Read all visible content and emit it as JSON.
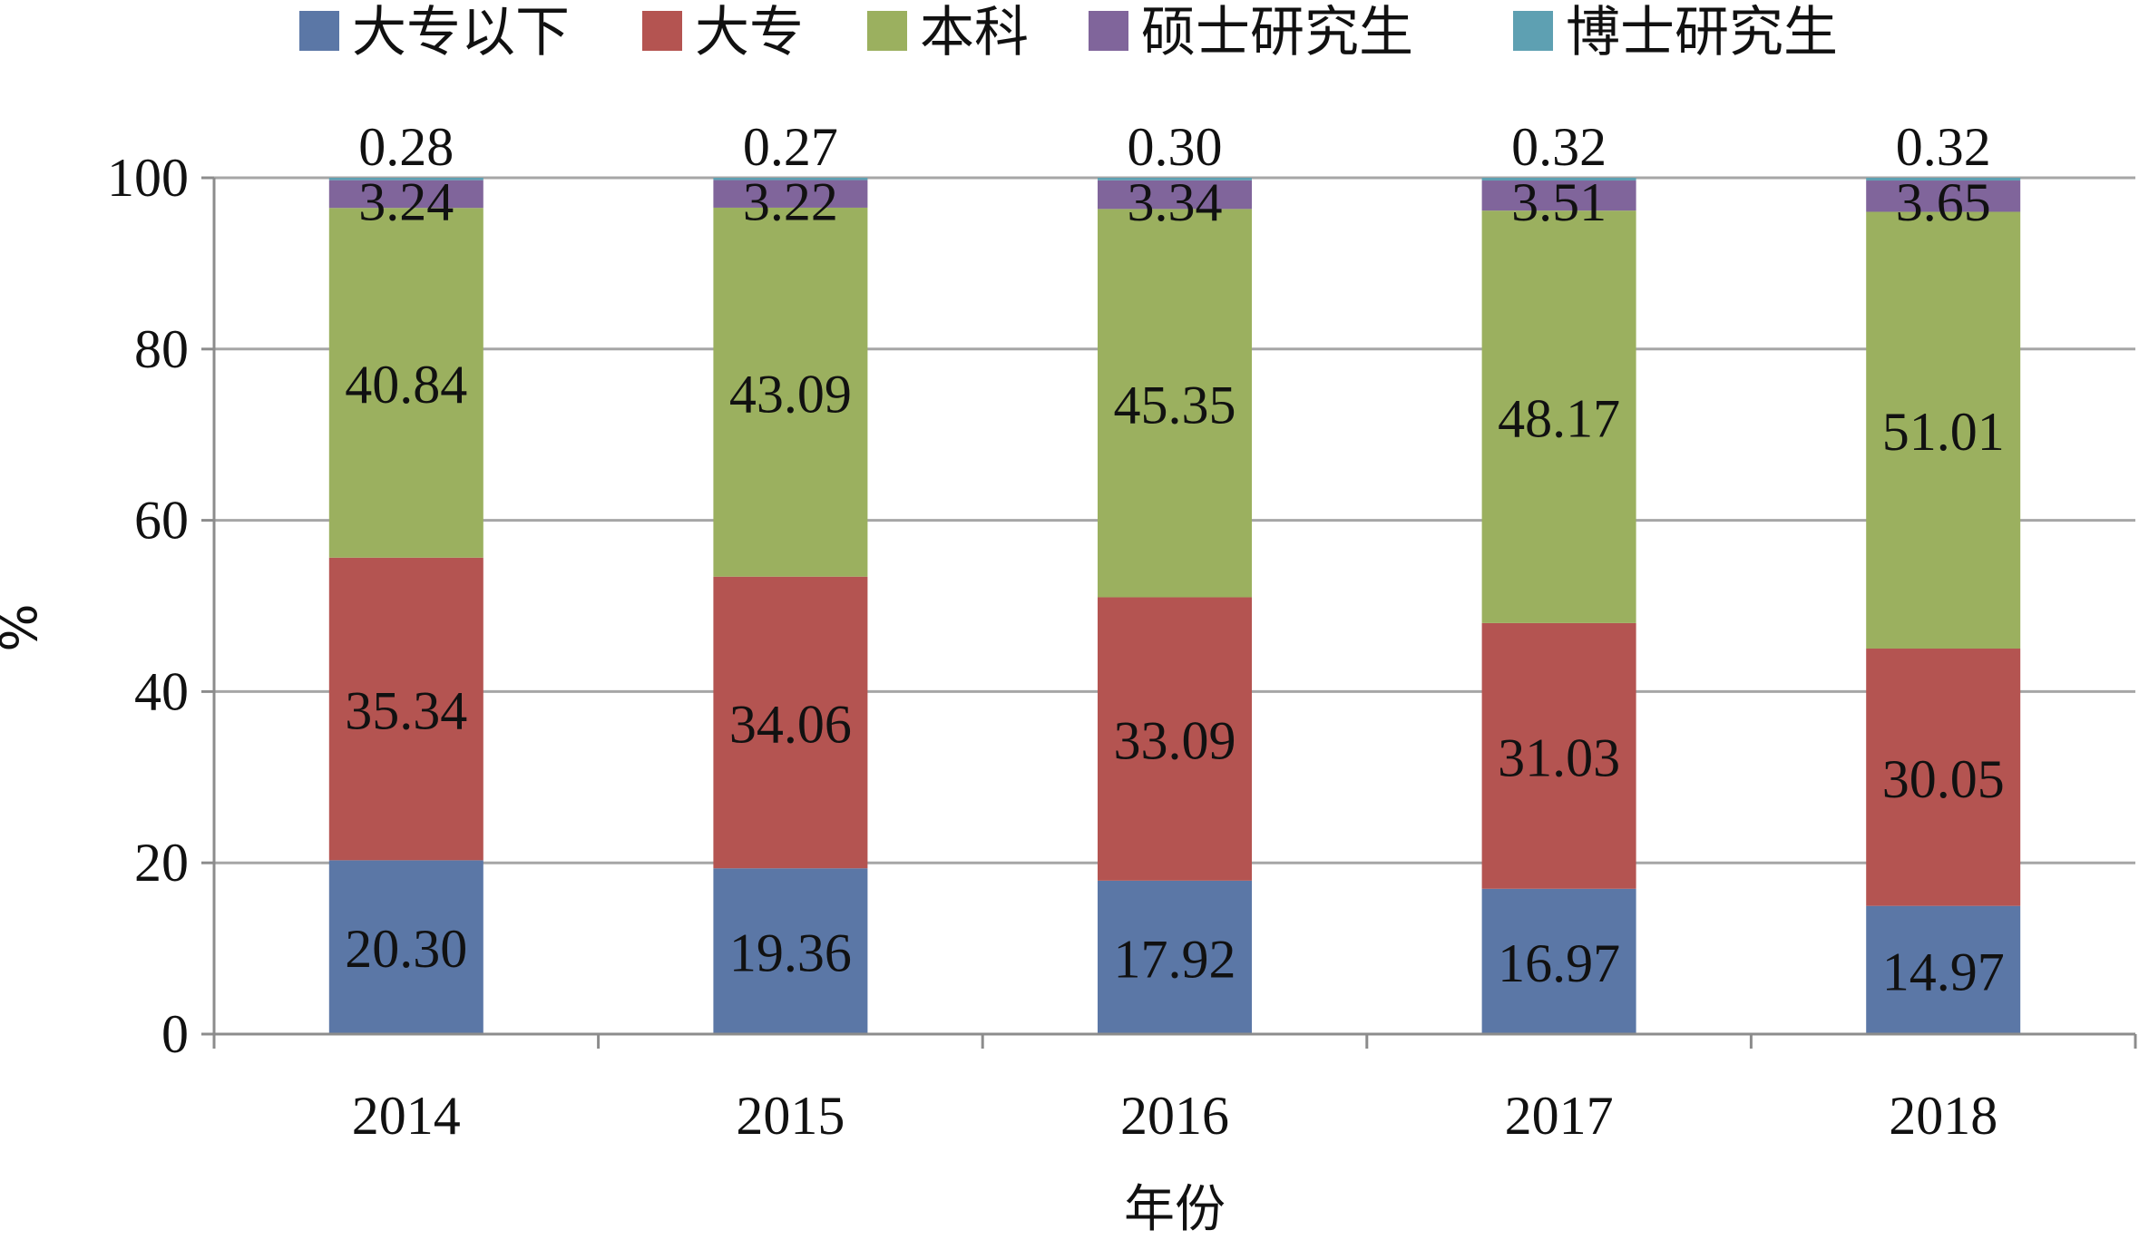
{
  "chart_data": {
    "type": "bar",
    "stacked": true,
    "categories": [
      "2014",
      "2015",
      "2016",
      "2017",
      "2018"
    ],
    "series": [
      {
        "name": "大专以下",
        "color": "#5b77a6",
        "values": [
          20.3,
          19.36,
          17.92,
          16.97,
          14.97
        ]
      },
      {
        "name": "大专",
        "color": "#b45451",
        "values": [
          35.34,
          34.06,
          33.09,
          31.03,
          30.05
        ]
      },
      {
        "name": "本科",
        "color": "#9bb05f",
        "values": [
          40.84,
          43.09,
          45.35,
          48.17,
          51.01
        ]
      },
      {
        "name": "硕士研究生",
        "color": "#80659b",
        "values": [
          3.24,
          3.22,
          3.34,
          3.51,
          3.65
        ]
      },
      {
        "name": "博士研究生",
        "color": "#5ea0b2",
        "values": [
          0.28,
          0.27,
          0.3,
          0.32,
          0.32
        ]
      }
    ],
    "labels": [
      [
        "20.30",
        "19.36",
        "17.92",
        "16.97",
        "14.97"
      ],
      [
        "35.34",
        "34.06",
        "33.09",
        "31.03",
        "30.05"
      ],
      [
        "40.84",
        "43.09",
        "45.35",
        "48.17",
        "51.01"
      ],
      [
        "3.24",
        "3.22",
        "3.34",
        "3.51",
        "3.65"
      ],
      [
        "0.28",
        "0.27",
        "0.30",
        "0.32",
        "0.32"
      ]
    ],
    "xlabel": "年份",
    "ylabel": "%",
    "ylim": [
      0,
      100
    ],
    "yticks": [
      "0",
      "20",
      "40",
      "60",
      "80",
      "100"
    ],
    "grid": true,
    "legend_position": "top"
  }
}
